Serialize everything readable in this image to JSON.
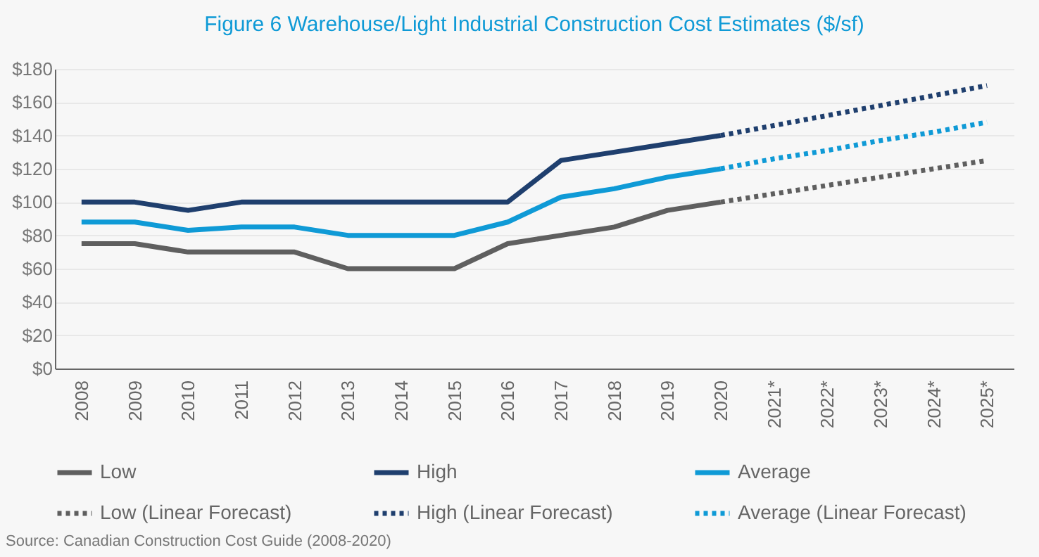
{
  "chart_data": {
    "type": "line",
    "title": "Figure 6 Warehouse/Light Industrial Construction Cost Estimates ($/sf)",
    "categories": [
      "2008",
      "2009",
      "2010",
      "2011",
      "2012",
      "2013",
      "2014",
      "2015",
      "2016",
      "2017",
      "2018",
      "2019",
      "2020",
      "2021*",
      "2022*",
      "2023*",
      "2024*",
      "2025*"
    ],
    "series": [
      {
        "name": "Low",
        "color": "#5f5f5f",
        "line_style": "solid",
        "values": [
          75,
          75,
          70,
          70,
          70,
          60,
          60,
          60,
          75,
          80,
          85,
          95,
          100,
          null,
          null,
          null,
          null,
          null
        ]
      },
      {
        "name": "High",
        "color": "#1f3f6e",
        "line_style": "solid",
        "values": [
          100,
          100,
          95,
          100,
          100,
          100,
          100,
          100,
          100,
          125,
          130,
          135,
          140,
          null,
          null,
          null,
          null,
          null
        ]
      },
      {
        "name": "Average",
        "color": "#0f9ad6",
        "line_style": "solid",
        "values": [
          88,
          88,
          83,
          85,
          85,
          80,
          80,
          80,
          88,
          103,
          108,
          115,
          120,
          null,
          null,
          null,
          null,
          null
        ]
      },
      {
        "name": "Low (Linear Forecast)",
        "color": "#5f5f5f",
        "line_style": "dotted",
        "values": [
          null,
          null,
          null,
          null,
          null,
          null,
          null,
          null,
          null,
          null,
          null,
          null,
          100,
          105,
          110,
          115,
          120,
          125
        ]
      },
      {
        "name": "High (Linear Forecast)",
        "color": "#1f3f6e",
        "line_style": "dotted",
        "values": [
          null,
          null,
          null,
          null,
          null,
          null,
          null,
          null,
          null,
          null,
          null,
          null,
          140,
          146,
          152,
          158,
          164,
          170
        ]
      },
      {
        "name": "Average (Linear Forecast)",
        "color": "#0f9ad6",
        "line_style": "dotted",
        "values": [
          null,
          null,
          null,
          null,
          null,
          null,
          null,
          null,
          null,
          null,
          null,
          null,
          120,
          126,
          131,
          137,
          142,
          148
        ]
      }
    ],
    "ylim": [
      0,
      180
    ],
    "yticks": [
      {
        "value": 0,
        "label": "$0"
      },
      {
        "value": 20,
        "label": "$20"
      },
      {
        "value": 40,
        "label": "$40"
      },
      {
        "value": 60,
        "label": "$60"
      },
      {
        "value": 80,
        "label": "$80"
      },
      {
        "value": 100,
        "label": "$100"
      },
      {
        "value": 120,
        "label": "$120"
      },
      {
        "value": 140,
        "label": "$140"
      },
      {
        "value": 160,
        "label": "$160"
      },
      {
        "value": 180,
        "label": "$180"
      }
    ],
    "grid": "y",
    "legend": "bottom",
    "annotations": [
      "Source: Canadian Construction Cost Guide (2008-2020)"
    ]
  }
}
